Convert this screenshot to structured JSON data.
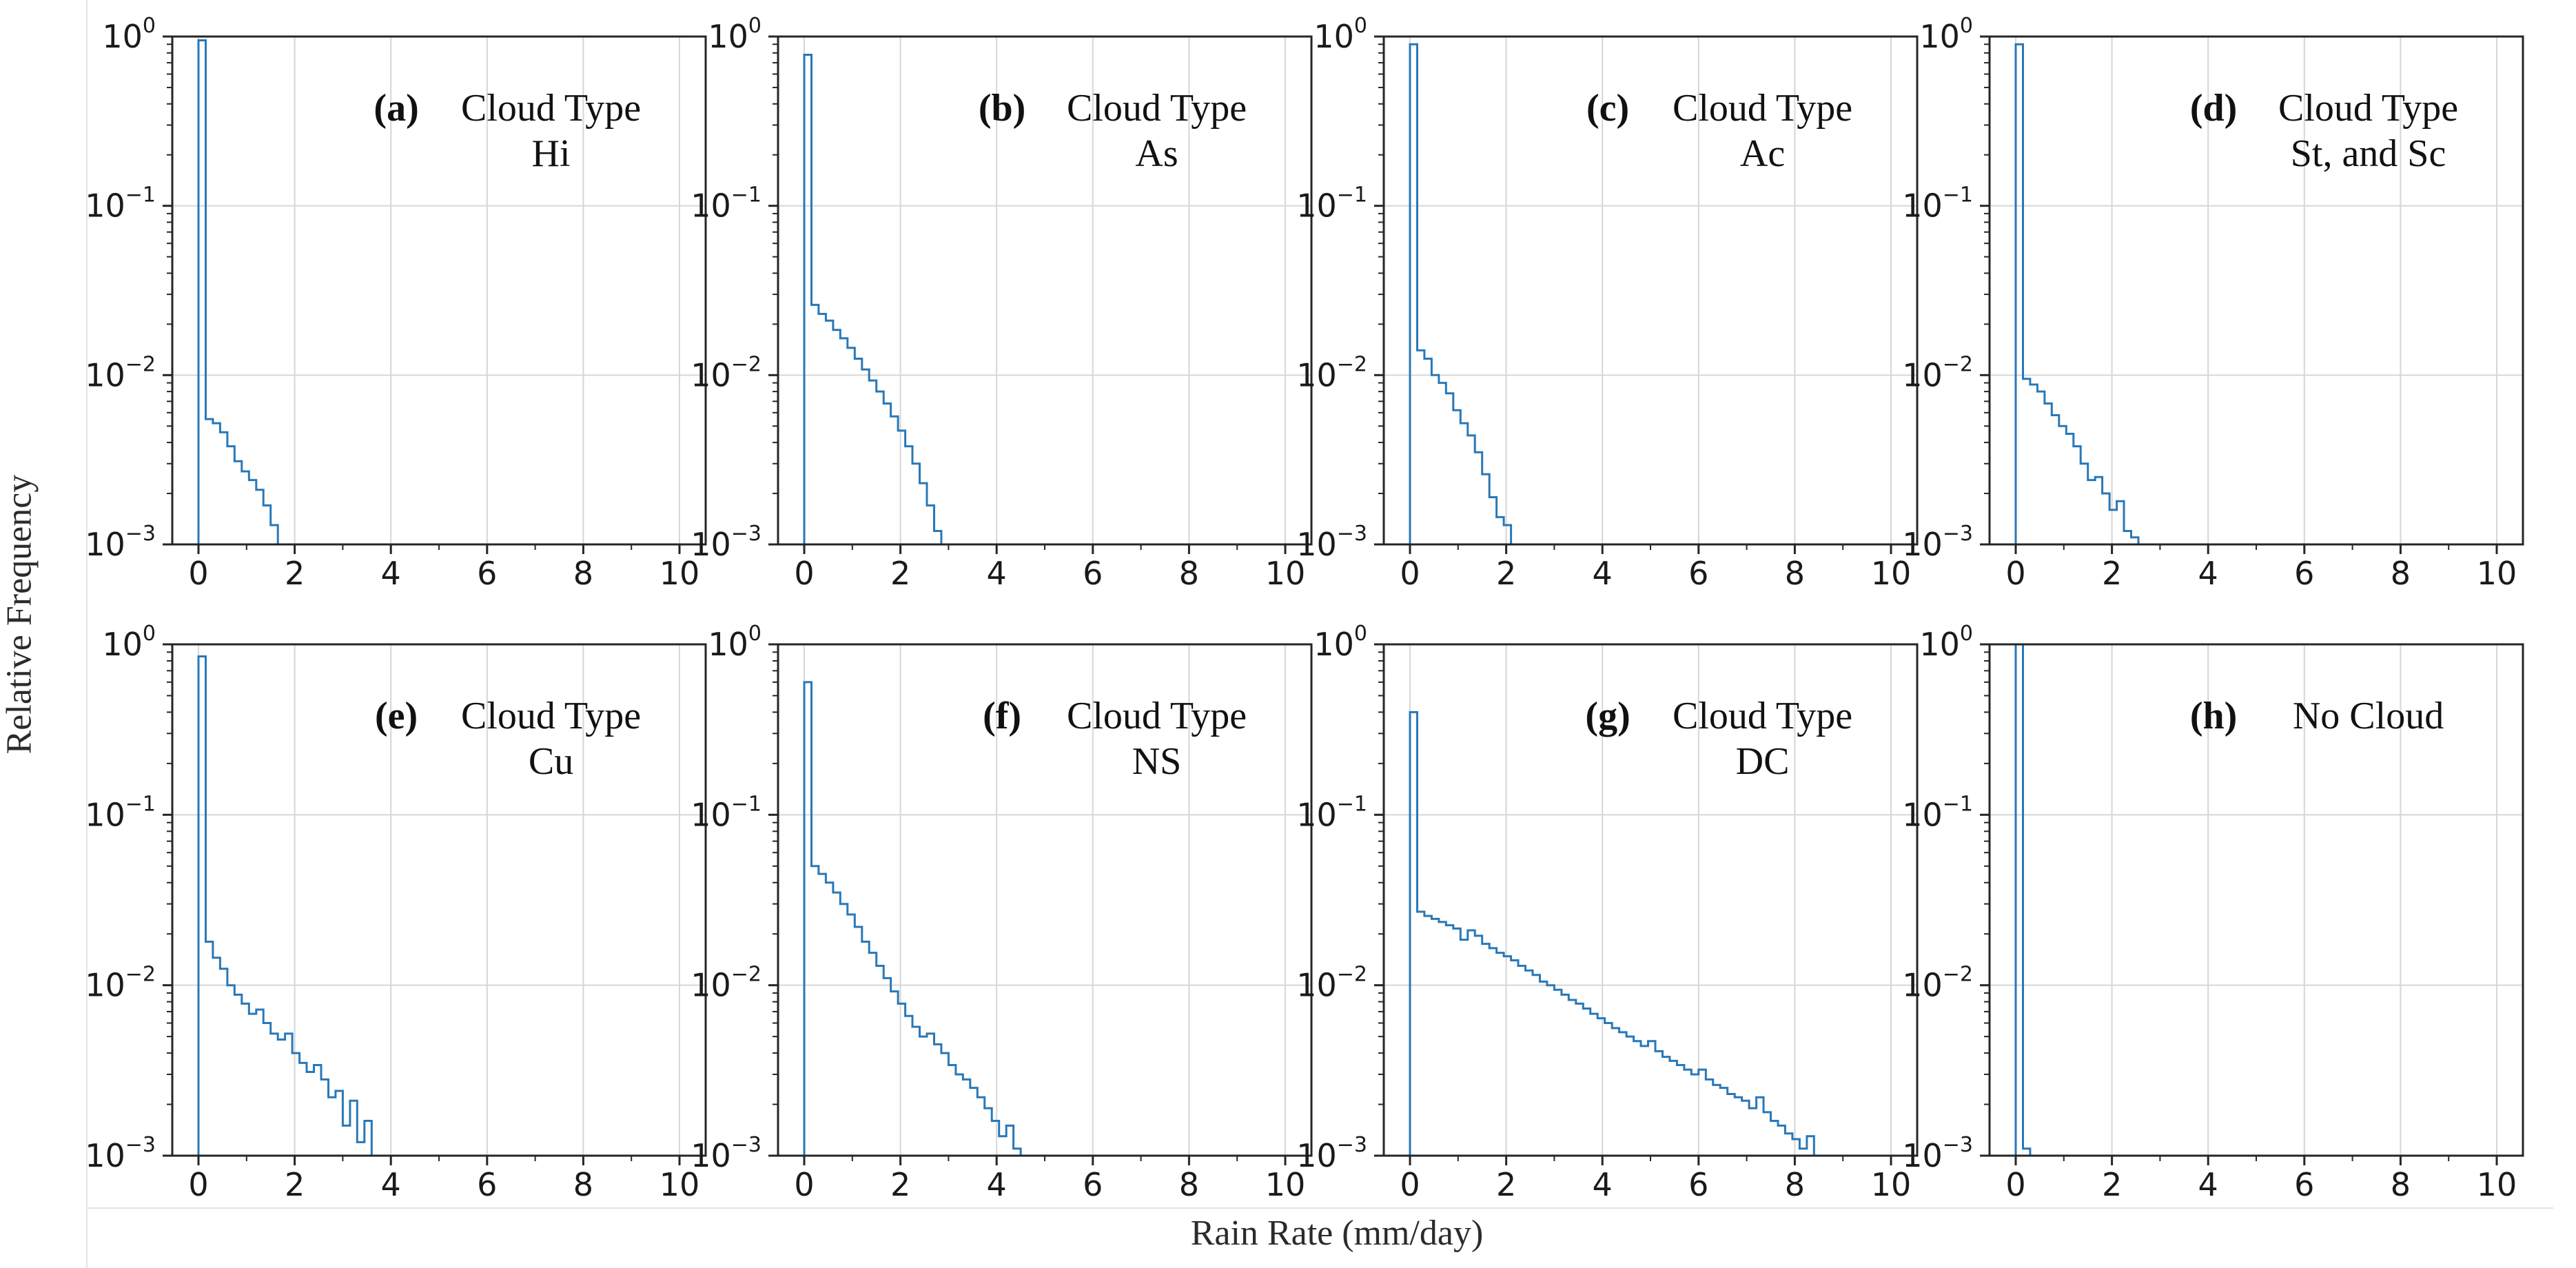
{
  "figure": {
    "xlabel": "Rain Rate (mm/day)",
    "ylabel": "Relative Frequency",
    "x_tick_labels": [
      "0",
      "2",
      "4",
      "6",
      "8",
      "10"
    ],
    "x_tick_values": [
      0,
      2,
      4,
      6,
      8,
      10
    ],
    "y_tick_labels": [
      {
        "base": "10",
        "exp": "0"
      },
      {
        "base": "10",
        "exp": "−1"
      },
      {
        "base": "10",
        "exp": "−2"
      },
      {
        "base": "10",
        "exp": "−3"
      }
    ],
    "y_tick_exponents": [
      0,
      -1,
      -2,
      -3
    ],
    "colors": {
      "line": "#2878b8",
      "grid": "#d6d6d6",
      "spine": "#262626",
      "text": "#1a1a1a",
      "annotation": "#111111",
      "page_border": "#e3e3e3"
    }
  },
  "chart_data": [
    {
      "panel": "(a)",
      "title_lines": [
        "Cloud Type",
        "Hi"
      ],
      "type": "line",
      "subtype": "histogram-step",
      "x_start": 0,
      "bin_width": 0.15,
      "xlim": [
        -0.55,
        10.55
      ],
      "ylim_log10": [
        -3,
        0
      ],
      "heights": [
        0.95,
        0.0055,
        0.0052,
        0.0046,
        0.0038,
        0.0031,
        0.0027,
        0.0024,
        0.0021,
        0.0017,
        0.0013
      ]
    },
    {
      "panel": "(b)",
      "title_lines": [
        "Cloud Type",
        "As"
      ],
      "type": "line",
      "subtype": "histogram-step",
      "x_start": 0,
      "bin_width": 0.15,
      "xlim": [
        -0.55,
        10.55
      ],
      "ylim_log10": [
        -3,
        0
      ],
      "heights": [
        0.78,
        0.026,
        0.023,
        0.021,
        0.0185,
        0.0165,
        0.0145,
        0.0125,
        0.0108,
        0.0093,
        0.008,
        0.0068,
        0.0057,
        0.0047,
        0.0038,
        0.003,
        0.0023,
        0.0017,
        0.0012
      ]
    },
    {
      "panel": "(c)",
      "title_lines": [
        "Cloud Type",
        "Ac"
      ],
      "type": "line",
      "subtype": "histogram-step",
      "x_start": 0,
      "bin_width": 0.15,
      "xlim": [
        -0.55,
        10.55
      ],
      "ylim_log10": [
        -3,
        0
      ],
      "heights": [
        0.9,
        0.014,
        0.0125,
        0.01,
        0.009,
        0.0078,
        0.0062,
        0.0052,
        0.0044,
        0.0035,
        0.0026,
        0.0019,
        0.00145,
        0.0013,
        0.001
      ]
    },
    {
      "panel": "(d)",
      "title_lines": [
        "Cloud Type",
        "St, and Sc"
      ],
      "type": "line",
      "subtype": "histogram-step",
      "x_start": 0,
      "bin_width": 0.15,
      "xlim": [
        -0.55,
        10.55
      ],
      "ylim_log10": [
        -3,
        0
      ],
      "heights": [
        0.9,
        0.0095,
        0.0088,
        0.008,
        0.0068,
        0.0058,
        0.005,
        0.0045,
        0.0038,
        0.003,
        0.0024,
        0.0025,
        0.002,
        0.0016,
        0.0018,
        0.0012,
        0.0011
      ]
    },
    {
      "panel": "(e)",
      "title_lines": [
        "Cloud Type",
        "Cu"
      ],
      "type": "line",
      "subtype": "histogram-step",
      "x_start": 0,
      "bin_width": 0.15,
      "xlim": [
        -0.55,
        10.55
      ],
      "ylim_log10": [
        -3,
        0
      ],
      "heights": [
        0.85,
        0.018,
        0.0145,
        0.0125,
        0.01,
        0.0088,
        0.0078,
        0.0068,
        0.0072,
        0.006,
        0.0052,
        0.0048,
        0.0052,
        0.004,
        0.0035,
        0.0031,
        0.0034,
        0.0028,
        0.0022,
        0.0024,
        0.0015,
        0.0021,
        0.0012,
        0.0016
      ]
    },
    {
      "panel": "(f)",
      "title_lines": [
        "Cloud Type",
        "NS"
      ],
      "type": "line",
      "subtype": "histogram-step",
      "x_start": 0,
      "bin_width": 0.15,
      "xlim": [
        -0.55,
        10.55
      ],
      "ylim_log10": [
        -3,
        0
      ],
      "heights": [
        0.6,
        0.05,
        0.045,
        0.04,
        0.035,
        0.03,
        0.026,
        0.022,
        0.018,
        0.0155,
        0.013,
        0.011,
        0.0092,
        0.0078,
        0.0066,
        0.0057,
        0.005,
        0.0052,
        0.0045,
        0.004,
        0.0034,
        0.003,
        0.0028,
        0.0025,
        0.0022,
        0.0019,
        0.0016,
        0.0013,
        0.0015,
        0.0011
      ]
    },
    {
      "panel": "(g)",
      "title_lines": [
        "Cloud Type",
        "DC"
      ],
      "type": "line",
      "subtype": "histogram-step",
      "x_start": 0,
      "bin_width": 0.15,
      "xlim": [
        -0.55,
        10.55
      ],
      "ylim_log10": [
        -3,
        0
      ],
      "heights": [
        0.4,
        0.027,
        0.0255,
        0.0245,
        0.0235,
        0.0225,
        0.0215,
        0.0185,
        0.021,
        0.0195,
        0.0175,
        0.0165,
        0.0155,
        0.0148,
        0.014,
        0.013,
        0.0122,
        0.0115,
        0.0105,
        0.01,
        0.0094,
        0.0088,
        0.0082,
        0.0078,
        0.0073,
        0.0068,
        0.0064,
        0.006,
        0.0056,
        0.0053,
        0.005,
        0.0047,
        0.0044,
        0.0047,
        0.0041,
        0.0038,
        0.0036,
        0.0034,
        0.0032,
        0.003,
        0.0032,
        0.0028,
        0.0026,
        0.0025,
        0.0023,
        0.0022,
        0.0021,
        0.0019,
        0.0022,
        0.0018,
        0.0016,
        0.0015,
        0.00135,
        0.00125,
        0.0011,
        0.0013
      ]
    },
    {
      "panel": "(h)",
      "title_lines": [
        "No Cloud"
      ],
      "type": "line",
      "subtype": "histogram-step",
      "x_start": 0,
      "bin_width": 0.15,
      "xlim": [
        -0.55,
        10.55
      ],
      "ylim_log10": [
        -3,
        0
      ],
      "heights": [
        1.0,
        0.0011
      ]
    }
  ]
}
